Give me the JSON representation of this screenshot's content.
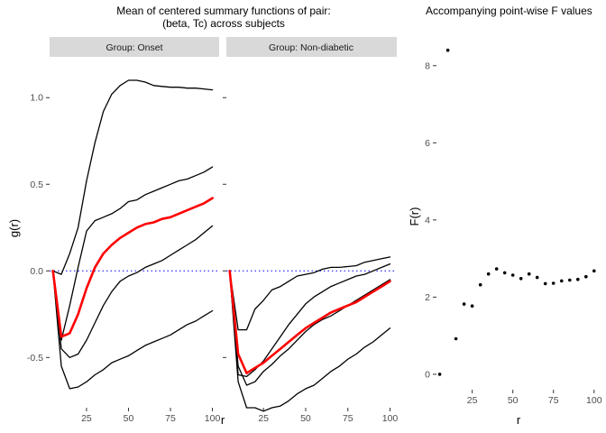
{
  "chart_data": [
    {
      "type": "line",
      "title": "Mean of centered summary functions of pair:",
      "subtitle": "(beta, Tc) across subjects",
      "xlabel": "r",
      "ylabel": "g(r)",
      "xlim": [
        3,
        104
      ],
      "ylim": [
        -0.79,
        1.22
      ],
      "x_ticks": [
        25,
        50,
        75,
        100
      ],
      "y_ticks": [
        -0.5,
        0.0,
        0.5,
        1.0
      ],
      "y_tick_labels": [
        "-0.5",
        "0.0",
        "0.5",
        "1.0"
      ],
      "reference_line": {
        "y": 0,
        "color": "#0000ff",
        "style": "dotted"
      },
      "grid": false,
      "facets": [
        {
          "strip_label": "Group: Onset",
          "x": [
            5,
            10,
            15,
            20,
            25,
            30,
            35,
            40,
            45,
            50,
            55,
            60,
            65,
            70,
            75,
            80,
            85,
            90,
            95,
            100
          ],
          "series": [
            {
              "color": "#000000",
              "values": [
                0.0,
                -0.02,
                0.1,
                0.25,
                0.52,
                0.74,
                0.92,
                1.02,
                1.07,
                1.1,
                1.1,
                1.09,
                1.07,
                1.065,
                1.06,
                1.06,
                1.055,
                1.055,
                1.05,
                1.045
              ]
            },
            {
              "color": "#000000",
              "values": [
                0.0,
                -0.4,
                -0.2,
                0.02,
                0.23,
                0.29,
                0.31,
                0.33,
                0.36,
                0.4,
                0.41,
                0.44,
                0.46,
                0.48,
                0.5,
                0.52,
                0.53,
                0.55,
                0.57,
                0.6
              ]
            },
            {
              "color": "#ff0000",
              "values": [
                0.0,
                -0.38,
                -0.36,
                -0.25,
                -0.1,
                0.02,
                0.1,
                0.15,
                0.19,
                0.22,
                0.25,
                0.27,
                0.28,
                0.3,
                0.31,
                0.33,
                0.35,
                0.37,
                0.39,
                0.42
              ]
            },
            {
              "color": "#000000",
              "values": [
                0.0,
                -0.45,
                -0.5,
                -0.48,
                -0.4,
                -0.3,
                -0.2,
                -0.12,
                -0.06,
                -0.03,
                -0.01,
                0.02,
                0.04,
                0.06,
                0.09,
                0.12,
                0.15,
                0.18,
                0.22,
                0.26
              ]
            },
            {
              "color": "#000000",
              "values": [
                0.0,
                -0.55,
                -0.68,
                -0.67,
                -0.64,
                -0.6,
                -0.57,
                -0.53,
                -0.51,
                -0.49,
                -0.46,
                -0.43,
                -0.41,
                -0.39,
                -0.37,
                -0.34,
                -0.31,
                -0.29,
                -0.26,
                -0.23
              ]
            }
          ]
        },
        {
          "strip_label": "Group: Non-diabetic",
          "x": [
            5,
            10,
            15,
            20,
            25,
            30,
            35,
            40,
            45,
            50,
            55,
            60,
            65,
            70,
            75,
            80,
            85,
            90,
            95,
            100
          ],
          "series": [
            {
              "color": "#000000",
              "values": [
                0.0,
                -0.34,
                -0.34,
                -0.22,
                -0.17,
                -0.11,
                -0.09,
                -0.06,
                -0.03,
                -0.02,
                -0.01,
                0.01,
                0.02,
                0.02,
                0.025,
                0.03,
                0.05,
                0.06,
                0.07,
                0.08
              ]
            },
            {
              "color": "#000000",
              "values": [
                0.0,
                -0.6,
                -0.61,
                -0.57,
                -0.52,
                -0.45,
                -0.38,
                -0.31,
                -0.25,
                -0.19,
                -0.15,
                -0.12,
                -0.09,
                -0.07,
                -0.05,
                -0.03,
                -0.02,
                0.0,
                0.02,
                0.04
              ]
            },
            {
              "color": "#ff0000",
              "values": [
                0.0,
                -0.48,
                -0.59,
                -0.56,
                -0.53,
                -0.49,
                -0.45,
                -0.41,
                -0.37,
                -0.33,
                -0.3,
                -0.27,
                -0.24,
                -0.22,
                -0.2,
                -0.18,
                -0.15,
                -0.12,
                -0.09,
                -0.06
              ]
            },
            {
              "color": "#000000",
              "values": [
                0.0,
                -0.55,
                -0.66,
                -0.64,
                -0.58,
                -0.54,
                -0.49,
                -0.45,
                -0.4,
                -0.35,
                -0.31,
                -0.28,
                -0.26,
                -0.23,
                -0.2,
                -0.17,
                -0.14,
                -0.11,
                -0.08,
                -0.05
              ]
            },
            {
              "color": "#000000",
              "values": [
                0.0,
                -0.64,
                -0.79,
                -0.79,
                -0.81,
                -0.79,
                -0.78,
                -0.75,
                -0.71,
                -0.68,
                -0.66,
                -0.62,
                -0.58,
                -0.55,
                -0.51,
                -0.48,
                -0.44,
                -0.41,
                -0.37,
                -0.33
              ]
            }
          ]
        }
      ]
    },
    {
      "type": "scatter",
      "title": "Accompanying point-wise F values",
      "xlabel": "r",
      "ylabel": "F(r)",
      "xlim": [
        3,
        104
      ],
      "ylim": [
        -0.4,
        9.0
      ],
      "x_ticks": [
        25,
        50,
        75,
        100
      ],
      "y_ticks": [
        0,
        2,
        4,
        6,
        8
      ],
      "y_tick_labels": [
        "0",
        "2",
        "4",
        "6",
        "8"
      ],
      "grid": false,
      "x": [
        5,
        10,
        15,
        20,
        25,
        30,
        35,
        40,
        45,
        50,
        55,
        60,
        65,
        70,
        75,
        80,
        85,
        90,
        95,
        100
      ],
      "y": [
        0.0,
        8.4,
        0.92,
        1.82,
        1.77,
        2.32,
        2.6,
        2.73,
        2.63,
        2.57,
        2.48,
        2.6,
        2.51,
        2.35,
        2.36,
        2.42,
        2.44,
        2.46,
        2.53,
        2.68
      ]
    }
  ]
}
